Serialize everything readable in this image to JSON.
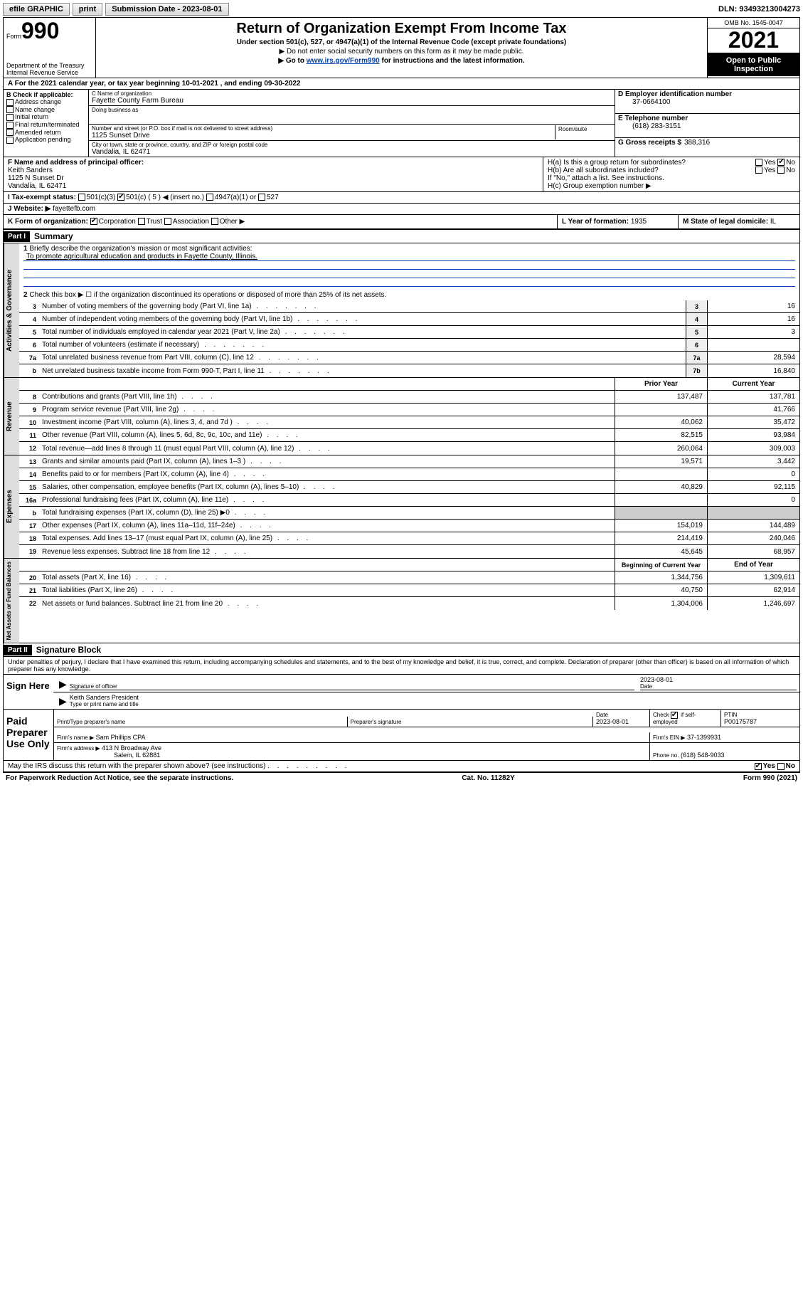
{
  "toolbar": {
    "efile": "efile GRAPHIC",
    "print": "print",
    "submission_label": "Submission Date - 2023-08-01",
    "dln": "DLN: 93493213004273"
  },
  "header": {
    "form_word": "Form",
    "form_number": "990",
    "dept1": "Department of the Treasury",
    "dept2": "Internal Revenue Service",
    "title": "Return of Organization Exempt From Income Tax",
    "subtitle": "Under section 501(c), 527, or 4947(a)(1) of the Internal Revenue Code (except private foundations)",
    "line2": "▶ Do not enter social security numbers on this form as it may be made public.",
    "line3_pre": "▶ Go to ",
    "line3_link": "www.irs.gov/Form990",
    "line3_post": " for instructions and the latest information.",
    "omb": "OMB No. 1545-0047",
    "year": "2021",
    "open_pub": "Open to Public Inspection"
  },
  "lineA": "A For the 2021 calendar year, or tax year beginning 10-01-2021   , and ending 09-30-2022",
  "sectB": {
    "label": "B Check if applicable:",
    "items": [
      "Address change",
      "Name change",
      "Initial return",
      "Final return/terminated",
      "Amended return",
      "Application pending"
    ]
  },
  "sectC": {
    "name_label": "C Name of organization",
    "name": "Fayette County Farm Bureau",
    "dba_label": "Doing business as",
    "addr_label": "Number and street (or P.O. box if mail is not delivered to street address)",
    "room_label": "Room/suite",
    "addr": "1125 Sunset Drive",
    "city_label": "City or town, state or province, country, and ZIP or foreign postal code",
    "city": "Vandalia, IL  62471"
  },
  "sectD": {
    "label": "D Employer identification number",
    "value": "37-0664100"
  },
  "sectE": {
    "label": "E Telephone number",
    "value": "(618) 283-3151"
  },
  "sectG": {
    "label": "G Gross receipts $",
    "value": "388,316"
  },
  "sectF": {
    "label": "F Name and address of principal officer:",
    "name": "Keith Sanders",
    "addr1": "1125 N Sunset Dr",
    "addr2": "Vandalia, IL  62471"
  },
  "sectH": {
    "a": "H(a)  Is this a group return for subordinates?",
    "a_yes": "Yes",
    "a_no": "No",
    "b": "H(b)  Are all subordinates included?",
    "b_note": "If \"No,\" attach a list. See instructions.",
    "c": "H(c)  Group exemption number ▶"
  },
  "sectI": {
    "label": "I  Tax-exempt status:",
    "o1": "501(c)(3)",
    "o2": "501(c) ( 5 ) ◀ (insert no.)",
    "o3": "4947(a)(1) or",
    "o4": "527"
  },
  "sectJ": {
    "label": "J  Website: ▶",
    "value": "fayettefb.com"
  },
  "sectK": {
    "label": "K Form of organization:",
    "o1": "Corporation",
    "o2": "Trust",
    "o3": "Association",
    "o4": "Other ▶"
  },
  "sectL": {
    "label": "L Year of formation:",
    "value": "1935"
  },
  "sectM": {
    "label": "M State of legal domicile:",
    "value": "IL"
  },
  "part1": {
    "label": "Part I",
    "title": "Summary",
    "q1": "Briefly describe the organization's mission or most significant activities:",
    "mission": "To promote agricultural education and products in Fayette County, Illinois.",
    "q2": "Check this box ▶ ☐  if the organization discontinued its operations or disposed of more than 25% of its net assets.",
    "lines_gov": [
      {
        "n": "3",
        "t": "Number of voting members of the governing body (Part VI, line 1a)",
        "box": "3",
        "v": "16"
      },
      {
        "n": "4",
        "t": "Number of independent voting members of the governing body (Part VI, line 1b)",
        "box": "4",
        "v": "16"
      },
      {
        "n": "5",
        "t": "Total number of individuals employed in calendar year 2021 (Part V, line 2a)",
        "box": "5",
        "v": "3"
      },
      {
        "n": "6",
        "t": "Total number of volunteers (estimate if necessary)",
        "box": "6",
        "v": ""
      },
      {
        "n": "7a",
        "t": "Total unrelated business revenue from Part VIII, column (C), line 12",
        "box": "7a",
        "v": "28,594"
      },
      {
        "n": "b",
        "t": "Net unrelated business taxable income from Form 990-T, Part I, line 11",
        "box": "7b",
        "v": "16,840"
      }
    ],
    "col_prior": "Prior Year",
    "col_current": "Current Year",
    "rev": [
      {
        "n": "8",
        "t": "Contributions and grants (Part VIII, line 1h)",
        "p": "137,487",
        "c": "137,781"
      },
      {
        "n": "9",
        "t": "Program service revenue (Part VIII, line 2g)",
        "p": "",
        "c": "41,766"
      },
      {
        "n": "10",
        "t": "Investment income (Part VIII, column (A), lines 3, 4, and 7d )",
        "p": "40,062",
        "c": "35,472"
      },
      {
        "n": "11",
        "t": "Other revenue (Part VIII, column (A), lines 5, 6d, 8c, 9c, 10c, and 11e)",
        "p": "82,515",
        "c": "93,984"
      },
      {
        "n": "12",
        "t": "Total revenue—add lines 8 through 11 (must equal Part VIII, column (A), line 12)",
        "p": "260,064",
        "c": "309,003"
      }
    ],
    "exp": [
      {
        "n": "13",
        "t": "Grants and similar amounts paid (Part IX, column (A), lines 1–3 )",
        "p": "19,571",
        "c": "3,442"
      },
      {
        "n": "14",
        "t": "Benefits paid to or for members (Part IX, column (A), line 4)",
        "p": "",
        "c": "0"
      },
      {
        "n": "15",
        "t": "Salaries, other compensation, employee benefits (Part IX, column (A), lines 5–10)",
        "p": "40,829",
        "c": "92,115"
      },
      {
        "n": "16a",
        "t": "Professional fundraising fees (Part IX, column (A), line 11e)",
        "p": "",
        "c": "0"
      },
      {
        "n": "b",
        "t": "Total fundraising expenses (Part IX, column (D), line 25) ▶0",
        "p": "SHADE",
        "c": "SHADE"
      },
      {
        "n": "17",
        "t": "Other expenses (Part IX, column (A), lines 11a–11d, 11f–24e)",
        "p": "154,019",
        "c": "144,489"
      },
      {
        "n": "18",
        "t": "Total expenses. Add lines 13–17 (must equal Part IX, column (A), line 25)",
        "p": "214,419",
        "c": "240,046"
      },
      {
        "n": "19",
        "t": "Revenue less expenses. Subtract line 18 from line 12",
        "p": "45,645",
        "c": "68,957"
      }
    ],
    "col_begin": "Beginning of Current Year",
    "col_end": "End of Year",
    "net": [
      {
        "n": "20",
        "t": "Total assets (Part X, line 16)",
        "p": "1,344,756",
        "c": "1,309,611"
      },
      {
        "n": "21",
        "t": "Total liabilities (Part X, line 26)",
        "p": "40,750",
        "c": "62,914"
      },
      {
        "n": "22",
        "t": "Net assets or fund balances. Subtract line 21 from line 20",
        "p": "1,304,006",
        "c": "1,246,697"
      }
    ],
    "tab_gov": "Activities & Governance",
    "tab_rev": "Revenue",
    "tab_exp": "Expenses",
    "tab_net": "Net Assets or Fund Balances"
  },
  "part2": {
    "label": "Part II",
    "title": "Signature Block",
    "perjury": "Under penalties of perjury, I declare that I have examined this return, including accompanying schedules and statements, and to the best of my knowledge and belief, it is true, correct, and complete. Declaration of preparer (other than officer) is based on all information of which preparer has any knowledge."
  },
  "sign": {
    "left": "Sign Here",
    "sig_label": "Signature of officer",
    "date": "2023-08-01",
    "date_label": "Date",
    "name": "Keith Sanders  President",
    "name_label": "Type or print name and title"
  },
  "prep": {
    "left": "Paid Preparer Use Only",
    "h1": "Print/Type preparer's name",
    "h2": "Preparer's signature",
    "h3": "Date",
    "date": "2023-08-01",
    "h4_pre": "Check",
    "h4_post": "if self-employed",
    "h5": "PTIN",
    "ptin": "P00175787",
    "firm_name_label": "Firm's name    ▶",
    "firm_name": "Sam Phillips CPA",
    "firm_ein_label": "Firm's EIN ▶",
    "firm_ein": "37-1399931",
    "firm_addr_label": "Firm's address ▶",
    "firm_addr1": "413 N Broadway Ave",
    "firm_addr2": "Salem, IL  62881",
    "phone_label": "Phone no.",
    "phone": "(618) 548-9033"
  },
  "discuss": {
    "text": "May the IRS discuss this return with the preparer shown above? (see instructions)",
    "yes": "Yes",
    "no": "No"
  },
  "footer": {
    "left": "For Paperwork Reduction Act Notice, see the separate instructions.",
    "mid": "Cat. No. 11282Y",
    "right": "Form 990 (2021)"
  }
}
